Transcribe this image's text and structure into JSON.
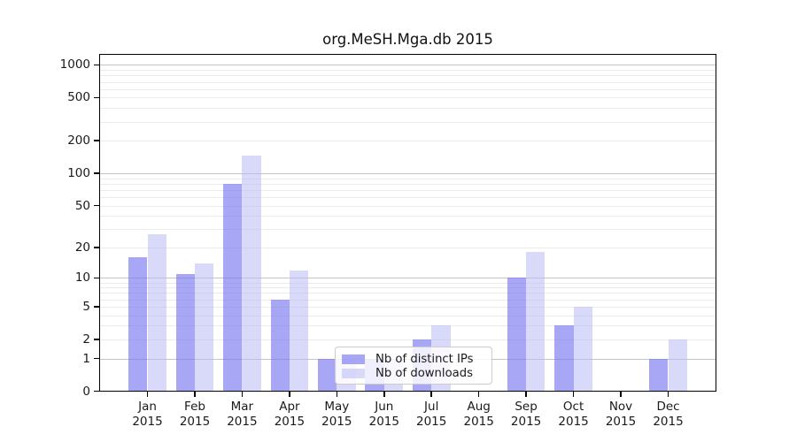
{
  "page": {
    "background": "#ffffff"
  },
  "chart_data": {
    "type": "bar",
    "title": "org.MeSH.Mga.db 2015",
    "categories": [
      "Jan",
      "Feb",
      "Mar",
      "Apr",
      "May",
      "Jun",
      "Jul",
      "Aug",
      "Sep",
      "Oct",
      "Nov",
      "Dec"
    ],
    "category_year": "2015",
    "series": [
      {
        "name": "Nb of distinct IPs",
        "color": "rgba(120,120,240,0.65)",
        "solid_hex": "#a7a7f3",
        "values": [
          16,
          11,
          80,
          6,
          1,
          1,
          2,
          0,
          10,
          3,
          0,
          1
        ]
      },
      {
        "name": "Nb of downloads",
        "color": "rgba(185,185,246,0.55)",
        "solid_hex": "#dcdcf8",
        "values": [
          27,
          14,
          145,
          12,
          1,
          1,
          3,
          0,
          18,
          5,
          0,
          2
        ]
      }
    ],
    "y_scale": "log10(1+v)",
    "y_ticks": [
      0,
      1,
      2,
      5,
      10,
      20,
      50,
      100,
      200,
      500,
      1000
    ],
    "y_major_ticks": [
      1,
      10,
      100,
      1000
    ],
    "y_minor_gridlines": [
      3,
      4,
      6,
      7,
      8,
      9,
      30,
      40,
      60,
      70,
      80,
      90,
      300,
      400,
      600,
      700,
      800,
      900
    ],
    "ylim": [
      0,
      1260
    ],
    "xlabel": "",
    "ylabel": "",
    "grid": true,
    "legend_position": "lower-center",
    "grid_major_color": "#c3c3c3",
    "grid_minor_color": "#ebebeb",
    "frame_color": "#000000"
  }
}
